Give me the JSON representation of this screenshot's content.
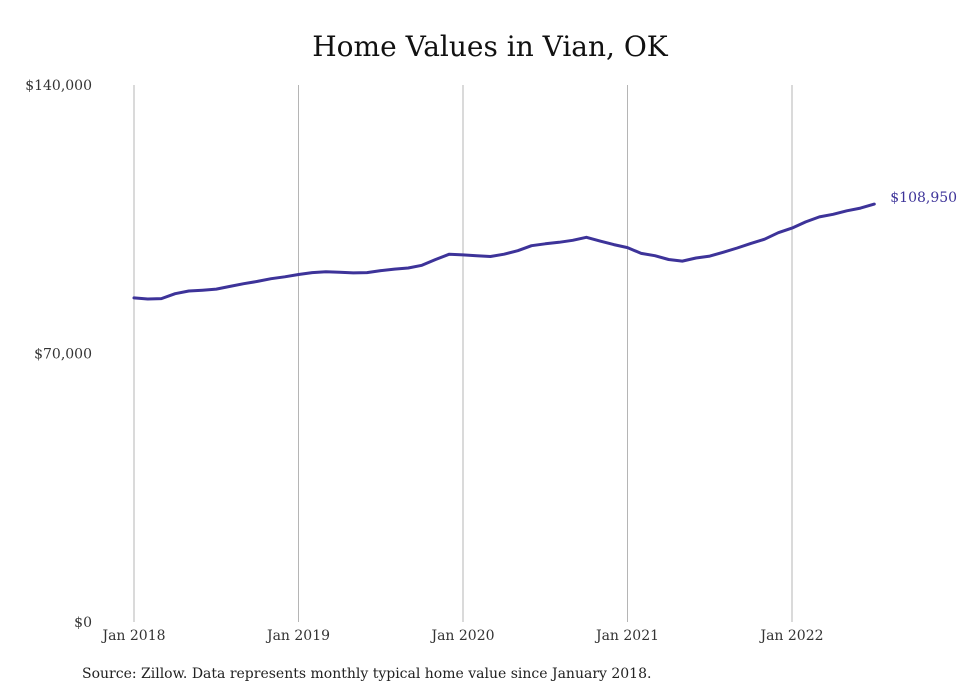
{
  "chart_data": {
    "type": "line",
    "title": "Home Values in Vian, OK",
    "xlabel": "",
    "ylabel": "",
    "ylim": [
      0,
      140000
    ],
    "yticks": [
      {
        "value": 0,
        "label": "$0"
      },
      {
        "value": 70000,
        "label": "$70,000"
      },
      {
        "value": 140000,
        "label": "$140,000"
      }
    ],
    "xticks": [
      {
        "value": "2018-01",
        "label": "Jan 2018"
      },
      {
        "value": "2019-01",
        "label": "Jan 2019"
      },
      {
        "value": "2020-01",
        "label": "Jan 2020"
      },
      {
        "value": "2021-01",
        "label": "Jan 2021"
      },
      {
        "value": "2022-01",
        "label": "Jan 2022"
      }
    ],
    "grid": {
      "vertical": true,
      "horizontal": false
    },
    "series": [
      {
        "color": "#3d3399",
        "x": [
          "2018-01",
          "2018-02",
          "2018-03",
          "2018-04",
          "2018-05",
          "2018-06",
          "2018-07",
          "2018-08",
          "2018-09",
          "2018-10",
          "2018-11",
          "2018-12",
          "2019-01",
          "2019-02",
          "2019-03",
          "2019-04",
          "2019-05",
          "2019-06",
          "2019-07",
          "2019-08",
          "2019-09",
          "2019-10",
          "2019-11",
          "2019-12",
          "2020-01",
          "2020-02",
          "2020-03",
          "2020-04",
          "2020-05",
          "2020-06",
          "2020-07",
          "2020-08",
          "2020-09",
          "2020-10",
          "2020-11",
          "2020-12",
          "2021-01",
          "2021-02",
          "2021-03",
          "2021-04",
          "2021-05",
          "2021-06",
          "2021-07",
          "2021-08",
          "2021-09",
          "2021-10",
          "2021-11",
          "2021-12",
          "2022-01",
          "2022-02",
          "2022-03",
          "2022-04",
          "2022-05",
          "2022-06",
          "2022-07"
        ],
        "values": [
          84500,
          84200,
          84300,
          85600,
          86300,
          86500,
          86800,
          87500,
          88200,
          88800,
          89500,
          90000,
          90600,
          91100,
          91300,
          91200,
          91000,
          91100,
          91600,
          92000,
          92300,
          93000,
          94500,
          95900,
          95700,
          95500,
          95300,
          95900,
          96800,
          98100,
          98600,
          99000,
          99500,
          100300,
          99300,
          98400,
          97600,
          96100,
          95500,
          94500,
          94100,
          94900,
          95400,
          96400,
          97500,
          98700,
          99800,
          101500,
          102700,
          104300,
          105600,
          106300,
          107200,
          107900,
          108950
        ]
      }
    ],
    "end_label": "$108,950"
  },
  "source_note": "Source: Zillow. Data represents monthly typical home value since January 2018."
}
